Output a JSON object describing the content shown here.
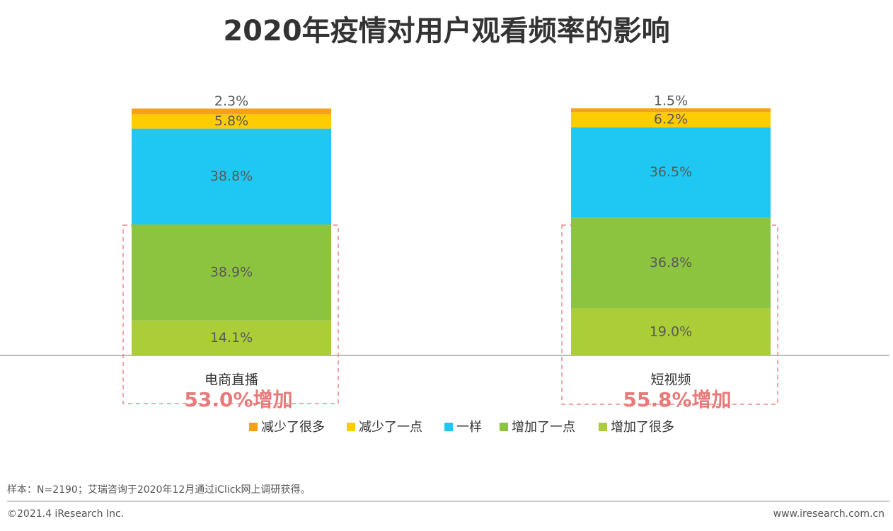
{
  "chart_data": {
    "type": "stacked_bar",
    "title": "2020年疫情对用户观看频率的影响",
    "categories": [
      "电商直播",
      "短视频"
    ],
    "ylim": [
      0,
      100
    ],
    "series": [
      {
        "name": "减少了很多",
        "color": "#f5a21b",
        "values": [
          2.3,
          1.5
        ],
        "value_labels": [
          "2.3%",
          "1.5%"
        ]
      },
      {
        "name": "减少了一点",
        "color": "#ffcc00",
        "values": [
          5.8,
          6.2
        ],
        "value_labels": [
          "5.8%",
          "6.2%"
        ]
      },
      {
        "name": "一样",
        "color": "#1ec8f2",
        "values": [
          38.8,
          36.5
        ],
        "value_labels": [
          "38.8%",
          "36.5%"
        ]
      },
      {
        "name": "增加了一点",
        "color": "#8cc43f",
        "values": [
          38.9,
          36.8
        ],
        "value_labels": [
          "38.9%",
          "36.8%"
        ]
      },
      {
        "name": "增加了很多",
        "color": "#aacd38",
        "values": [
          14.1,
          19.0
        ],
        "value_labels": [
          "14.1%",
          "19.0%"
        ]
      }
    ],
    "annotations": [
      "53.0%增加",
      "55.8%增加"
    ],
    "source": "样本：N=2190；艾瑞咨询于2020年12月通过iClick网上调研获得。",
    "copyright": "©2021.4 iResearch Inc.",
    "website": "www.iresearch.com.cn"
  }
}
